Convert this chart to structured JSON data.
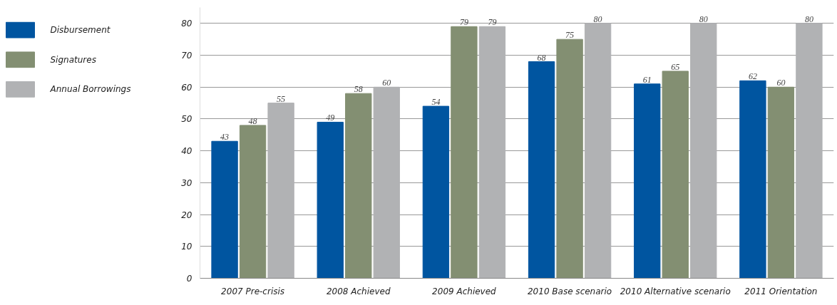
{
  "chart_data": {
    "type": "bar",
    "categories": [
      "2007 Pre-crisis",
      "2008 Achieved",
      "2009 Achieved",
      "2010 Base scenario",
      "2010 Alternative scenario",
      "2011 Orientation"
    ],
    "series": [
      {
        "name": "Disbursement",
        "color": "#0055a0",
        "values": [
          43,
          49,
          54,
          68,
          61,
          62
        ]
      },
      {
        "name": "Signatures",
        "color": "#838f72",
        "values": [
          48,
          58,
          79,
          75,
          65,
          60
        ]
      },
      {
        "name": "Annual Borrowings",
        "color": "#b1b2b4",
        "values": [
          55,
          60,
          79,
          80,
          80,
          80
        ]
      }
    ],
    "ylim": [
      0,
      85
    ],
    "yticks": [
      0,
      10,
      20,
      30,
      40,
      50,
      60,
      70,
      80
    ],
    "grid": "y",
    "legend": "left",
    "data_labels": true
  }
}
